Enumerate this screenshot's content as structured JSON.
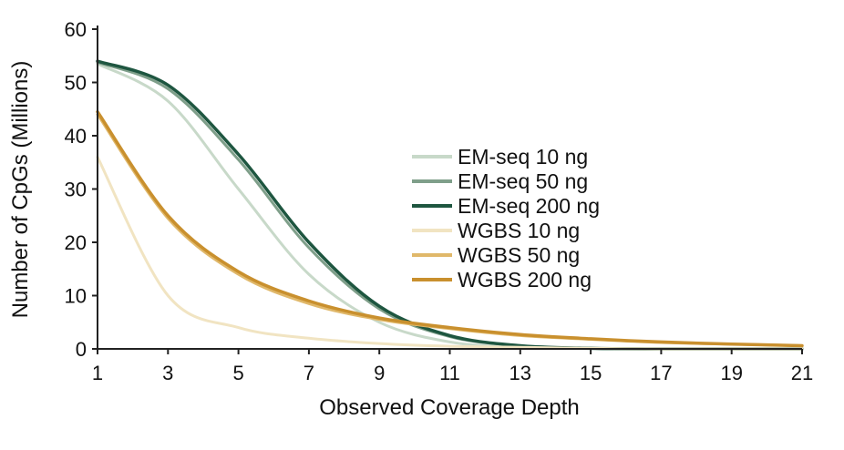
{
  "chart_data": {
    "type": "line",
    "title": "",
    "xlabel": "Observed Coverage Depth",
    "ylabel": "Number of CpGs (Millions)",
    "xlim": [
      1,
      21
    ],
    "ylim": [
      0,
      60
    ],
    "x_ticks": [
      1,
      3,
      5,
      7,
      9,
      11,
      13,
      15,
      17,
      19,
      21
    ],
    "y_ticks": [
      0,
      10,
      20,
      30,
      40,
      50,
      60
    ],
    "grid": false,
    "legend_position": "center-right",
    "x": [
      1,
      3,
      5,
      7,
      9,
      11,
      13,
      15,
      17,
      19,
      21
    ],
    "series": [
      {
        "name": "EM-seq 10 ng",
        "color": "#c8d9c9",
        "values": [
          53.5,
          46.5,
          30,
          14,
          5,
          1.3,
          0.3,
          0.1,
          0,
          0,
          0
        ]
      },
      {
        "name": "EM-seq 50 ng",
        "color": "#7f9f8a",
        "values": [
          53.8,
          48.8,
          35.5,
          19,
          7.5,
          2.3,
          0.6,
          0.1,
          0,
          0,
          0
        ]
      },
      {
        "name": "EM-seq 200 ng",
        "color": "#1e5640",
        "values": [
          54,
          49.5,
          36.5,
          20,
          8,
          2.5,
          0.6,
          0.1,
          0,
          0,
          0
        ]
      },
      {
        "name": "WGBS 10 ng",
        "color": "#f1e4c2",
        "values": [
          36,
          10,
          4,
          2,
          1,
          0.5,
          0.3,
          0.1,
          0,
          0,
          0
        ]
      },
      {
        "name": "WGBS 50 ng",
        "color": "#e0b86a",
        "values": [
          44,
          24.5,
          14,
          8.5,
          5.5,
          3.8,
          2.5,
          1.8,
          1.2,
          0.9,
          0.6
        ]
      },
      {
        "name": "WGBS 200 ng",
        "color": "#c9902e",
        "values": [
          44.5,
          25,
          14.5,
          9,
          5.8,
          4,
          2.7,
          1.9,
          1.3,
          0.9,
          0.6
        ]
      }
    ]
  }
}
